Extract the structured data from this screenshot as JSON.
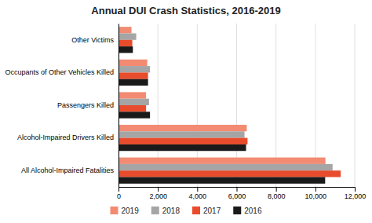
{
  "chart_data": {
    "type": "bar",
    "orientation": "horizontal",
    "title": "Annual DUI Crash Statistics, 2016-2019",
    "categories": [
      "All Alcohol-Impaired Fatalities",
      "Alcohol-Impaired Drivers Killed",
      "Passengers Killed",
      "Occupants of Other Vehicles Killed",
      "Other Victims"
    ],
    "series": [
      {
        "name": "2019",
        "color": "#f28b72",
        "values": [
          10511,
          6515,
          1400,
          1459,
          659
        ]
      },
      {
        "name": "2018",
        "color": "#a5a5a5",
        "values": [
          10874,
          6400,
          1550,
          1600,
          900
        ]
      },
      {
        "name": "2017",
        "color": "#e84c2c",
        "values": [
          11288,
          6554,
          1400,
          1500,
          700
        ]
      },
      {
        "name": "2016",
        "color": "#1a1a1a",
        "values": [
          10497,
          6479,
          1600,
          1500,
          730
        ]
      }
    ],
    "xlim": [
      0,
      12000
    ],
    "xticks": [
      0,
      {
        "value": 2000,
        "label": "2,000"
      },
      {
        "value": 4000,
        "label": "4,000"
      },
      {
        "value": 6000,
        "label": "6,000"
      },
      {
        "value": 8000,
        "label": "8,000"
      },
      {
        "value": 10000,
        "label": "10,000"
      },
      {
        "value": 12000,
        "label": "12,000"
      }
    ],
    "grid": true,
    "legend": "bottom"
  }
}
